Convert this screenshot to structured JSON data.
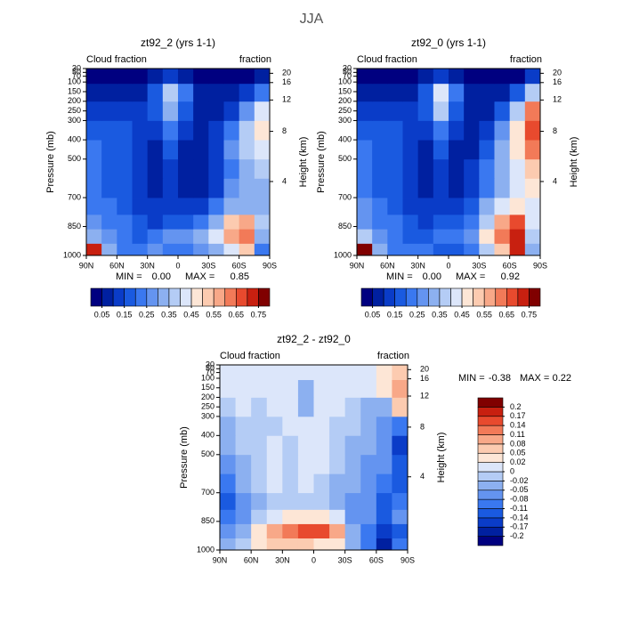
{
  "title": "JJA",
  "chart_data": [
    {
      "type": "contour",
      "title": "zt92_2 (yrs 1-1)",
      "left_label": "Cloud fraction",
      "right_label": "fraction",
      "ylabel": "Pressure (mb)",
      "y2label": "Height (km)",
      "xlim": [
        90,
        -90
      ],
      "xticks": [
        {
          "value": 90,
          "label": "90N"
        },
        {
          "value": 60,
          "label": "60N"
        },
        {
          "value": 30,
          "label": "30N"
        },
        0,
        {
          "value": -30,
          "label": "30S"
        },
        {
          "value": -60,
          "label": "60S"
        },
        {
          "value": -90,
          "label": "90S"
        }
      ],
      "ylim": [
        1000,
        30
      ],
      "yticks": [
        30,
        50,
        70,
        100,
        150,
        200,
        250,
        300,
        400,
        500,
        700,
        850,
        1000
      ],
      "y2ticks": [
        4,
        8,
        12,
        16,
        20
      ],
      "lat": [
        82.5,
        67.5,
        52.5,
        37.5,
        22.5,
        7.5,
        -7.5,
        -22.5,
        -37.5,
        -52.5,
        -67.5,
        -82.5
      ],
      "pressure": [
        975,
        900,
        825,
        750,
        650,
        550,
        450,
        350,
        250,
        150,
        65
      ],
      "z": [
        [
          0.7,
          0.3,
          0.2,
          0.2,
          0.25,
          0.2,
          0.2,
          0.25,
          0.3,
          0.4,
          0.5,
          0.2
        ],
        [
          0.3,
          0.25,
          0.2,
          0.15,
          0.2,
          0.25,
          0.25,
          0.3,
          0.4,
          0.55,
          0.6,
          0.3
        ],
        [
          0.25,
          0.2,
          0.2,
          0.15,
          0.1,
          0.15,
          0.15,
          0.2,
          0.3,
          0.5,
          0.55,
          0.35
        ],
        [
          0.2,
          0.2,
          0.15,
          0.1,
          0.1,
          0.1,
          0.1,
          0.1,
          0.2,
          0.3,
          0.3,
          0.3
        ],
        [
          0.2,
          0.15,
          0.15,
          0.1,
          0.05,
          0.1,
          0.05,
          0.05,
          0.1,
          0.25,
          0.3,
          0.3
        ],
        [
          0.2,
          0.15,
          0.15,
          0.1,
          0.05,
          0.1,
          0.05,
          0.05,
          0.1,
          0.2,
          0.3,
          0.35
        ],
        [
          0.2,
          0.15,
          0.15,
          0.1,
          0.05,
          0.15,
          0.05,
          0.05,
          0.1,
          0.25,
          0.35,
          0.4
        ],
        [
          0.15,
          0.15,
          0.15,
          0.1,
          0.1,
          0.2,
          0.1,
          0.05,
          0.1,
          0.2,
          0.35,
          0.45
        ],
        [
          0.1,
          0.1,
          0.1,
          0.1,
          0.15,
          0.3,
          0.15,
          0.05,
          0.05,
          0.1,
          0.25,
          0.4
        ],
        [
          0.05,
          0.05,
          0.05,
          0.05,
          0.15,
          0.35,
          0.2,
          0.05,
          0.05,
          0.05,
          0.1,
          0.2
        ],
        [
          0.03,
          0.03,
          0.03,
          0.03,
          0.05,
          0.1,
          0.05,
          0.03,
          0.03,
          0.03,
          0.03,
          0.05
        ]
      ],
      "levels": [
        0.05,
        0.1,
        0.15,
        0.2,
        0.25,
        0.3,
        0.35,
        0.4,
        0.45,
        0.5,
        0.55,
        0.6,
        0.65,
        0.7,
        0.75
      ],
      "colorbar_ticks": [
        0.05,
        0.15,
        0.25,
        0.35,
        0.45,
        0.55,
        0.65,
        0.75
      ],
      "colors": [
        "#000080",
        "#0020a0",
        "#0a3cc8",
        "#1a5ae0",
        "#3a78f0",
        "#6494f0",
        "#8cb0f0",
        "#b4ccf5",
        "#dce6fa",
        "#fde6d6",
        "#fccbb0",
        "#f8a888",
        "#f27a58",
        "#e84a2e",
        "#c82010",
        "#800000"
      ],
      "min_text": "MIN =",
      "min": {
        "value": 0,
        "label": "0.00"
      },
      "max_text": "MAX =",
      "max": 0.85
    },
    {
      "type": "contour",
      "title": "zt92_0 (yrs 1-1)",
      "left_label": "Cloud fraction",
      "right_label": "fraction",
      "ylabel": "Pressure (mb)",
      "y2label": "Height (km)",
      "xlim": [
        90,
        -90
      ],
      "xticks": [
        {
          "value": 90,
          "label": "90N"
        },
        {
          "value": 60,
          "label": "60N"
        },
        {
          "value": 30,
          "label": "30N"
        },
        0,
        {
          "value": -30,
          "label": "30S"
        },
        {
          "value": -60,
          "label": "60S"
        },
        {
          "value": -90,
          "label": "90S"
        }
      ],
      "ylim": [
        1000,
        30
      ],
      "yticks": [
        30,
        50,
        70,
        100,
        150,
        200,
        250,
        300,
        400,
        500,
        700,
        850,
        1000
      ],
      "y2ticks": [
        4,
        8,
        12,
        16,
        20
      ],
      "lat": [
        82.5,
        67.5,
        52.5,
        37.5,
        22.5,
        7.5,
        -7.5,
        -22.5,
        -37.5,
        -52.5,
        -67.5,
        -82.5
      ],
      "pressure": [
        975,
        900,
        825,
        750,
        650,
        550,
        450,
        350,
        250,
        150,
        65
      ],
      "z": [
        [
          0.75,
          0.3,
          0.2,
          0.2,
          0.2,
          0.15,
          0.15,
          0.2,
          0.35,
          0.5,
          0.7,
          0.3
        ],
        [
          0.35,
          0.25,
          0.2,
          0.15,
          0.15,
          0.2,
          0.2,
          0.25,
          0.45,
          0.6,
          0.7,
          0.35
        ],
        [
          0.25,
          0.2,
          0.2,
          0.15,
          0.1,
          0.15,
          0.15,
          0.2,
          0.35,
          0.55,
          0.65,
          0.4
        ],
        [
          0.25,
          0.2,
          0.15,
          0.1,
          0.1,
          0.1,
          0.1,
          0.15,
          0.3,
          0.4,
          0.45,
          0.4
        ],
        [
          0.2,
          0.15,
          0.15,
          0.1,
          0.05,
          0.1,
          0.05,
          0.1,
          0.2,
          0.3,
          0.4,
          0.45
        ],
        [
          0.2,
          0.15,
          0.15,
          0.1,
          0.05,
          0.1,
          0.05,
          0.1,
          0.2,
          0.3,
          0.4,
          0.5
        ],
        [
          0.2,
          0.15,
          0.15,
          0.1,
          0.05,
          0.15,
          0.05,
          0.05,
          0.15,
          0.3,
          0.45,
          0.6
        ],
        [
          0.15,
          0.15,
          0.15,
          0.1,
          0.1,
          0.2,
          0.1,
          0.05,
          0.1,
          0.25,
          0.45,
          0.65
        ],
        [
          0.1,
          0.1,
          0.1,
          0.1,
          0.15,
          0.35,
          0.15,
          0.05,
          0.05,
          0.15,
          0.35,
          0.6
        ],
        [
          0.05,
          0.05,
          0.05,
          0.05,
          0.15,
          0.4,
          0.2,
          0.05,
          0.05,
          0.05,
          0.15,
          0.35
        ],
        [
          0.03,
          0.03,
          0.03,
          0.03,
          0.05,
          0.1,
          0.05,
          0.03,
          0.03,
          0.03,
          0.03,
          0.1
        ]
      ],
      "levels": [
        0.05,
        0.1,
        0.15,
        0.2,
        0.25,
        0.3,
        0.35,
        0.4,
        0.45,
        0.5,
        0.55,
        0.6,
        0.65,
        0.7,
        0.75
      ],
      "colorbar_ticks": [
        0.05,
        0.15,
        0.25,
        0.35,
        0.45,
        0.55,
        0.65,
        0.75
      ],
      "colors": [
        "#000080",
        "#0020a0",
        "#0a3cc8",
        "#1a5ae0",
        "#3a78f0",
        "#6494f0",
        "#8cb0f0",
        "#b4ccf5",
        "#dce6fa",
        "#fde6d6",
        "#fccbb0",
        "#f8a888",
        "#f27a58",
        "#e84a2e",
        "#c82010",
        "#800000"
      ],
      "min_text": "MIN =",
      "min": {
        "value": 0,
        "label": "0.00"
      },
      "max_text": "MAX =",
      "max": 0.92
    },
    {
      "type": "contour",
      "title": "zt92_2 - zt92_0",
      "left_label": "Cloud fraction",
      "right_label": "fraction",
      "ylabel": "Pressure (mb)",
      "y2label": "Height (km)",
      "xlim": [
        90,
        -90
      ],
      "xticks": [
        {
          "value": 90,
          "label": "90N"
        },
        {
          "value": 60,
          "label": "60N"
        },
        {
          "value": 30,
          "label": "30N"
        },
        0,
        {
          "value": -30,
          "label": "30S"
        },
        {
          "value": -60,
          "label": "60S"
        },
        {
          "value": -90,
          "label": "90S"
        }
      ],
      "ylim": [
        1000,
        30
      ],
      "yticks": [
        30,
        50,
        70,
        100,
        150,
        200,
        250,
        300,
        400,
        500,
        700,
        850,
        1000
      ],
      "y2ticks": [
        4,
        8,
        12,
        16,
        20
      ],
      "lat": [
        82.5,
        67.5,
        52.5,
        37.5,
        22.5,
        7.5,
        -7.5,
        -22.5,
        -37.5,
        -52.5,
        -67.5,
        -82.5
      ],
      "pressure": [
        975,
        900,
        825,
        750,
        650,
        550,
        450,
        350,
        250,
        150,
        65
      ],
      "z": [
        [
          -0.05,
          -0.01,
          0.03,
          0.06,
          0.06,
          0.05,
          0.04,
          0.04,
          -0.05,
          -0.11,
          -0.18,
          -0.1
        ],
        [
          -0.08,
          -0.03,
          0.03,
          0.1,
          0.12,
          0.15,
          0.15,
          0.1,
          -0.04,
          -0.1,
          -0.17,
          -0.12
        ],
        [
          -0.1,
          -0.06,
          -0.02,
          0.01,
          0.02,
          0.03,
          0.03,
          0.0,
          -0.06,
          -0.08,
          -0.12,
          -0.08
        ],
        [
          -0.12,
          -0.07,
          -0.03,
          -0.01,
          -0.01,
          -0.02,
          -0.01,
          -0.03,
          -0.06,
          -0.08,
          -0.14,
          -0.1
        ],
        [
          -0.1,
          -0.05,
          -0.01,
          0.0,
          -0.01,
          0.01,
          -0.01,
          -0.03,
          -0.04,
          -0.06,
          -0.1,
          -0.12
        ],
        [
          -0.06,
          -0.03,
          -0.01,
          0.0,
          -0.01,
          0.01,
          0.0,
          -0.02,
          -0.03,
          -0.06,
          -0.08,
          -0.12
        ],
        [
          -0.04,
          -0.02,
          -0.01,
          0.0,
          -0.01,
          0.01,
          0.0,
          -0.01,
          -0.03,
          -0.05,
          -0.08,
          -0.15
        ],
        [
          -0.03,
          -0.01,
          -0.01,
          -0.01,
          0.0,
          0.01,
          0.0,
          -0.01,
          -0.02,
          -0.03,
          -0.06,
          -0.1
        ],
        [
          -0.02,
          0.0,
          -0.01,
          0.0,
          0.0,
          -0.03,
          0.0,
          0.0,
          -0.01,
          -0.03,
          -0.05,
          0.05
        ],
        [
          0.01,
          0.01,
          0.0,
          0.01,
          0.0,
          -0.03,
          0.0,
          0.01,
          0.01,
          0.01,
          0.03,
          0.1
        ],
        [
          0.01,
          0.01,
          0.01,
          0.0,
          0.01,
          0.0,
          0.0,
          0.0,
          0.01,
          0.01,
          0.02,
          0.05
        ]
      ],
      "levels": [
        -0.2,
        -0.17,
        -0.14,
        -0.11,
        -0.08,
        -0.05,
        -0.02,
        0,
        0.02,
        0.05,
        0.08,
        0.11,
        0.14,
        0.17,
        0.2
      ],
      "colorbar_ticks": [
        -0.2,
        -0.17,
        -0.14,
        -0.11,
        -0.08,
        -0.05,
        -0.02,
        0,
        0.02,
        0.05,
        0.08,
        0.11,
        0.14,
        0.17,
        0.2
      ],
      "colors": [
        "#000080",
        "#0020a0",
        "#0a3cc8",
        "#1a5ae0",
        "#3a78f0",
        "#6494f0",
        "#8cb0f0",
        "#b4ccf5",
        "#dce6fa",
        "#fde6d6",
        "#fccbb0",
        "#f8a888",
        "#f27a58",
        "#e84a2e",
        "#c82010",
        "#800000"
      ],
      "min_text": "MIN =",
      "min": -0.38,
      "max_text": "MAX =",
      "max": 0.22
    }
  ]
}
